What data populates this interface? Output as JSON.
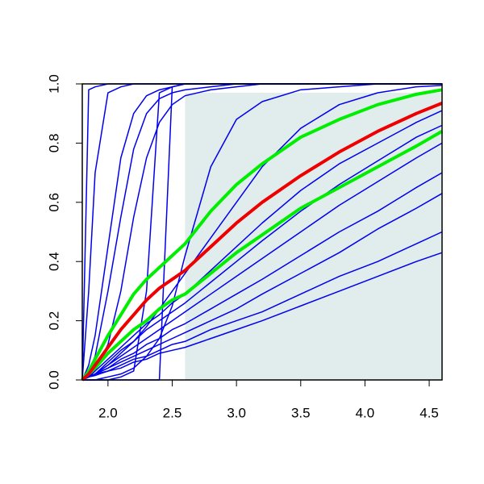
{
  "chart_data": {
    "type": "line",
    "x": [
      1.8,
      1.85,
      1.9,
      2.0,
      2.1,
      2.2,
      2.3,
      2.4,
      2.5,
      2.6,
      2.8,
      3.0,
      3.2,
      3.5,
      3.8,
      4.1,
      4.4,
      4.6
    ],
    "xlim": [
      1.8,
      4.6
    ],
    "xticks": [
      {
        "value": 2,
        "label": "2.0"
      },
      2.5,
      {
        "value": 3,
        "label": "3.0"
      },
      3.5,
      {
        "value": 4,
        "label": "4.0"
      },
      4.5
    ],
    "ylim": [
      0,
      1
    ],
    "yticks": [
      {
        "value": 0,
        "label": "0.0"
      },
      0.2,
      0.4,
      0.6,
      0.8,
      {
        "value": 1,
        "label": "1.0"
      }
    ],
    "shade": {
      "xlim": [
        2.6,
        4.6
      ],
      "ylim": [
        0,
        0.97
      ],
      "color": "#e1ecec"
    },
    "series": [
      {
        "color": "#0000ee",
        "line_width": 1.5,
        "values": [
          0,
          0.98,
          0.99,
          1,
          1,
          1,
          1,
          1,
          1,
          1,
          1,
          1,
          1,
          1,
          1,
          1,
          1,
          1
        ]
      },
      {
        "color": "#0000ee",
        "line_width": 1.5,
        "values": [
          0,
          0.3,
          0.7,
          0.97,
          0.99,
          1,
          1,
          1,
          1,
          1,
          1,
          1,
          1,
          1,
          1,
          1,
          1,
          1
        ]
      },
      {
        "color": "#0000ee",
        "line_width": 1.5,
        "values": [
          0,
          0.05,
          0.15,
          0.45,
          0.75,
          0.9,
          0.96,
          0.98,
          0.99,
          1,
          1,
          1,
          1,
          1,
          1,
          1,
          1,
          1
        ]
      },
      {
        "color": "#0000ee",
        "line_width": 1.5,
        "values": [
          0,
          0.03,
          0.08,
          0.3,
          0.55,
          0.78,
          0.9,
          0.95,
          0.97,
          0.98,
          0.99,
          1,
          1,
          1,
          1,
          1,
          1,
          1
        ]
      },
      {
        "color": "#0000ee",
        "line_width": 1.5,
        "values": [
          0,
          0.01,
          0.03,
          0.12,
          0.3,
          0.55,
          0.75,
          0.87,
          0.93,
          0.96,
          0.98,
          0.99,
          1,
          1,
          1,
          1,
          1,
          1
        ]
      },
      {
        "color": "#0000ee",
        "line_width": 1.5,
        "values": [
          0,
          0,
          0,
          0,
          0,
          0,
          0,
          0,
          0.99,
          1,
          1,
          1,
          1,
          1,
          1,
          1,
          1,
          1
        ]
      },
      {
        "color": "#0000ee",
        "line_width": 1.5,
        "values": [
          0,
          0,
          0,
          0,
          0.01,
          0.03,
          0.3,
          0.97,
          0.99,
          1,
          1,
          1,
          1,
          1,
          1,
          1,
          1,
          1
        ]
      },
      {
        "color": "#0000ee",
        "line_width": 1.5,
        "values": [
          0,
          0,
          0,
          0.01,
          0.02,
          0.04,
          0.08,
          0.14,
          0.25,
          0.42,
          0.72,
          0.88,
          0.94,
          0.98,
          0.99,
          1,
          1,
          1
        ]
      },
      {
        "color": "#0000ee",
        "line_width": 1.5,
        "values": [
          0,
          0.01,
          0.02,
          0.05,
          0.09,
          0.13,
          0.18,
          0.24,
          0.3,
          0.36,
          0.48,
          0.6,
          0.72,
          0.85,
          0.93,
          0.97,
          0.99,
          0.995
        ]
      },
      {
        "color": "#0000ee",
        "line_width": 1.5,
        "values": [
          0,
          0.01,
          0.03,
          0.07,
          0.11,
          0.15,
          0.19,
          0.22,
          0.26,
          0.29,
          0.37,
          0.45,
          0.53,
          0.64,
          0.73,
          0.8,
          0.87,
          0.91
        ]
      },
      {
        "color": "#0000ee",
        "line_width": 1.5,
        "values": [
          0,
          0.01,
          0.02,
          0.06,
          0.1,
          0.13,
          0.17,
          0.2,
          0.23,
          0.26,
          0.33,
          0.4,
          0.47,
          0.57,
          0.66,
          0.74,
          0.82,
          0.86
        ]
      },
      {
        "color": "#0000ee",
        "line_width": 1.5,
        "values": [
          0,
          0.01,
          0.02,
          0.05,
          0.08,
          0.11,
          0.14,
          0.17,
          0.2,
          0.23,
          0.29,
          0.35,
          0.41,
          0.5,
          0.59,
          0.67,
          0.75,
          0.8
        ]
      },
      {
        "color": "#0000ee",
        "line_width": 1.5,
        "values": [
          0,
          0.01,
          0.02,
          0.04,
          0.07,
          0.09,
          0.12,
          0.14,
          0.17,
          0.19,
          0.24,
          0.29,
          0.34,
          0.42,
          0.5,
          0.57,
          0.65,
          0.7
        ]
      },
      {
        "color": "#0000ee",
        "line_width": 1.5,
        "values": [
          0,
          0.01,
          0.02,
          0.04,
          0.06,
          0.08,
          0.1,
          0.12,
          0.14,
          0.16,
          0.2,
          0.24,
          0.29,
          0.36,
          0.43,
          0.51,
          0.58,
          0.63
        ]
      },
      {
        "color": "#0000ee",
        "line_width": 1.5,
        "values": [
          0,
          0.01,
          0.02,
          0.03,
          0.05,
          0.07,
          0.08,
          0.1,
          0.12,
          0.13,
          0.17,
          0.2,
          0.23,
          0.29,
          0.35,
          0.4,
          0.46,
          0.5
        ]
      },
      {
        "color": "#0000ee",
        "line_width": 1.5,
        "values": [
          0,
          0.01,
          0.015,
          0.03,
          0.04,
          0.06,
          0.07,
          0.09,
          0.1,
          0.11,
          0.14,
          0.17,
          0.2,
          0.25,
          0.3,
          0.35,
          0.4,
          0.43
        ]
      },
      {
        "color": "#00ee00",
        "line_width": 4,
        "values": [
          0,
          0.03,
          0.07,
          0.15,
          0.22,
          0.29,
          0.34,
          0.38,
          0.42,
          0.46,
          0.57,
          0.66,
          0.73,
          0.82,
          0.88,
          0.93,
          0.965,
          0.98
        ]
      },
      {
        "color": "#00ee00",
        "line_width": 4,
        "values": [
          0,
          0.02,
          0.04,
          0.09,
          0.13,
          0.17,
          0.2,
          0.24,
          0.27,
          0.29,
          0.36,
          0.43,
          0.49,
          0.58,
          0.65,
          0.72,
          0.79,
          0.84
        ]
      },
      {
        "color": "#ee0000",
        "line_width": 4,
        "values": [
          0,
          0.02,
          0.05,
          0.11,
          0.17,
          0.22,
          0.27,
          0.31,
          0.34,
          0.37,
          0.45,
          0.53,
          0.6,
          0.69,
          0.77,
          0.84,
          0.9,
          0.935
        ]
      }
    ]
  }
}
